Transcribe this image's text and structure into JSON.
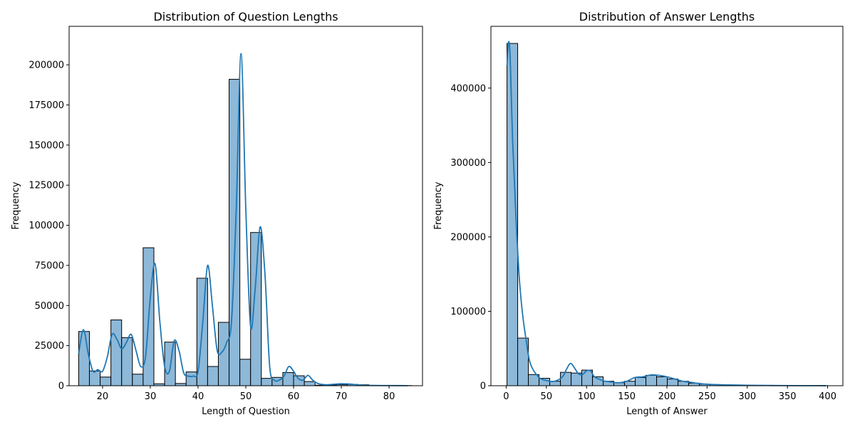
{
  "colors": {
    "bar_fill": "#8db8d8",
    "bar_edge": "#000000",
    "kde_line": "#1f77b4",
    "axes": "#000000",
    "background": "#ffffff"
  },
  "chart_data": [
    {
      "type": "bar",
      "variant": "histogram-with-kde",
      "title": "Distribution of Question Lengths",
      "xlabel": "Length of Question",
      "ylabel": "Frequency",
      "xlim": [
        13,
        87
      ],
      "ylim": [
        0,
        224000
      ],
      "xticks": [
        20,
        30,
        40,
        50,
        60,
        70,
        80
      ],
      "yticks": [
        0,
        25000,
        50000,
        75000,
        100000,
        125000,
        150000,
        175000,
        200000
      ],
      "grid": false,
      "bin_start": 15,
      "bin_width": 2.25,
      "values": [
        33800,
        9200,
        5400,
        41000,
        30000,
        7200,
        86000,
        1200,
        27200,
        1400,
        8600,
        67000,
        12000,
        39500,
        191000,
        16500,
        95500,
        4600,
        5200,
        8200,
        6200,
        2600,
        300,
        500,
        700,
        800,
        600,
        200,
        200,
        150,
        100
      ],
      "kde": {
        "x": [
          15,
          16,
          17,
          18,
          19,
          20,
          21,
          22,
          23,
          24,
          25,
          26,
          27,
          28,
          29,
          30,
          31,
          32,
          33,
          34,
          35,
          36,
          37,
          38,
          39,
          40,
          41,
          42,
          43,
          44,
          45,
          46,
          47,
          48,
          49,
          50,
          51,
          52,
          53,
          54,
          55,
          56,
          57,
          58,
          59,
          60,
          61,
          62,
          63,
          64,
          65,
          66,
          67,
          68,
          70,
          72,
          74,
          76,
          80,
          84
        ],
        "y": [
          20000,
          35000,
          20000,
          9000,
          10000,
          9000,
          18000,
          32000,
          29000,
          23000,
          27000,
          32000,
          22000,
          12000,
          18000,
          55000,
          76000,
          40000,
          12000,
          9000,
          28000,
          22000,
          8000,
          6000,
          6000,
          9000,
          40000,
          75000,
          50000,
          22000,
          21000,
          27000,
          40000,
          110000,
          207000,
          110000,
          37000,
          62000,
          99000,
          70000,
          12000,
          3500,
          3500,
          6000,
          12000,
          9000,
          4500,
          3500,
          6500,
          3500,
          1500,
          800,
          600,
          800,
          1200,
          1000,
          400,
          200,
          100,
          50
        ]
      }
    },
    {
      "type": "bar",
      "variant": "histogram-with-kde",
      "title": "Distribution of Answer Lengths",
      "xlabel": "Length of Answer",
      "ylabel": "Frequency",
      "xlim": [
        -19,
        419
      ],
      "ylim": [
        0,
        483000
      ],
      "xticks": [
        0,
        50,
        100,
        150,
        200,
        250,
        300,
        350,
        400
      ],
      "yticks": [
        0,
        100000,
        200000,
        300000,
        400000
      ],
      "grid": false,
      "bin_start": 1,
      "bin_width": 13.3,
      "values": [
        460000,
        64000,
        15000,
        10000,
        6000,
        18000,
        17000,
        21000,
        12000,
        6000,
        4000,
        6000,
        11000,
        14000,
        12000,
        9000,
        6000,
        3500,
        2000,
        1500,
        1000,
        800,
        500,
        400,
        300,
        300,
        200,
        200,
        150,
        100
      ],
      "kde": {
        "x": [
          1,
          3,
          5,
          8,
          12,
          16,
          20,
          25,
          30,
          40,
          50,
          60,
          70,
          75,
          80,
          85,
          90,
          95,
          100,
          105,
          110,
          120,
          130,
          140,
          150,
          160,
          170,
          180,
          190,
          200,
          210,
          220,
          230,
          240,
          250,
          270,
          300,
          330,
          360,
          398
        ],
        "y": [
          430000,
          462000,
          440000,
          330000,
          230000,
          150000,
          100000,
          60000,
          30000,
          12000,
          7000,
          6000,
          12000,
          22000,
          30000,
          24000,
          16000,
          15000,
          20000,
          20000,
          12000,
          7000,
          5000,
          4000,
          6000,
          11000,
          12000,
          14500,
          14000,
          12000,
          9000,
          6000,
          4500,
          3000,
          2000,
          1200,
          600,
          300,
          150,
          80
        ]
      }
    }
  ]
}
